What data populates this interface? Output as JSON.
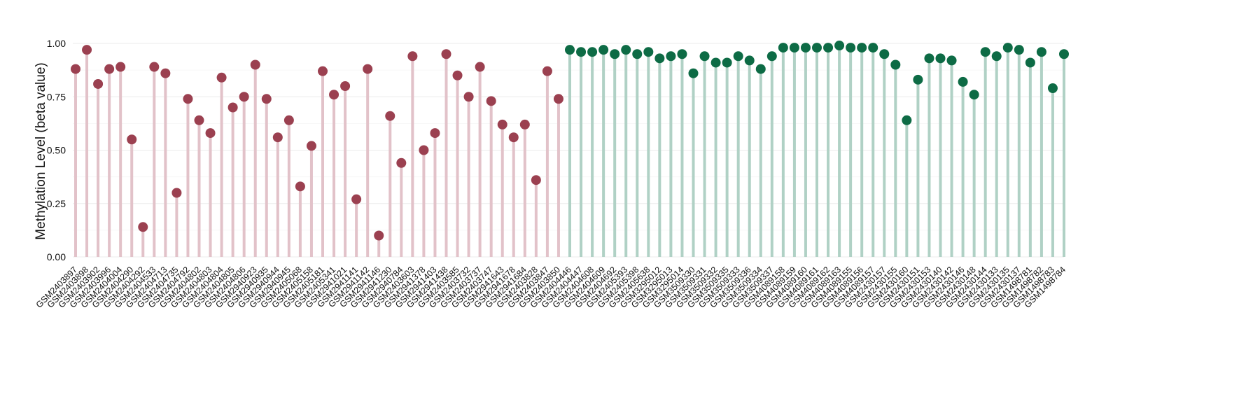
{
  "chart_data": {
    "type": "lollipop",
    "title": "",
    "xlabel": "",
    "ylabel": "Methylation Level (beta value)",
    "ylim": [
      0,
      1
    ],
    "yticks": [
      "0.00",
      "0.25",
      "0.50",
      "0.75",
      "1.00"
    ],
    "grid": true,
    "legend": "none",
    "series": [
      {
        "color": "#9b4050",
        "stem_color": "#e2c2c9",
        "categories": [
          "GSM2403897",
          "GSM2403898",
          "GSM2403902",
          "GSM2403996",
          "GSM2404004",
          "GSM2404290",
          "GSM2404292",
          "GSM2404533",
          "GSM2404713",
          "GSM2404735",
          "GSM2404792",
          "GSM2404802",
          "GSM2404803",
          "GSM2404804",
          "GSM2404805",
          "GSM2404806",
          "GSM2940923",
          "GSM2940935",
          "GSM2940944",
          "GSM2940945",
          "GSM2405068",
          "GSM2405158",
          "GSM2405181",
          "GSM2405341",
          "GSM2941021",
          "GSM2941141",
          "GSM2941142",
          "GSM2941146",
          "GSM2941230",
          "GSM2940784",
          "GSM2403603",
          "GSM2941378",
          "GSM2941403",
          "GSM2941438",
          "GSM2403585",
          "GSM2403732",
          "GSM2403737",
          "GSM2403747",
          "GSM2941643",
          "GSM2941678",
          "GSM2941684",
          "GSM2403828",
          "GSM2403847",
          "GSM2403850"
        ],
        "values": [
          0.88,
          0.97,
          0.81,
          0.88,
          0.89,
          0.55,
          0.14,
          0.89,
          0.86,
          0.3,
          0.74,
          0.64,
          0.58,
          0.84,
          0.7,
          0.75,
          0.9,
          0.74,
          0.56,
          0.64,
          0.33,
          0.52,
          0.87,
          0.76,
          0.8,
          0.27,
          0.88,
          0.1,
          0.66,
          0.44,
          0.94,
          0.5,
          0.58,
          0.95,
          0.85,
          0.75,
          0.89,
          0.73,
          0.62,
          0.56,
          0.62,
          0.36,
          0.87,
          0.74
        ]
      },
      {
        "color": "#0d6b45",
        "stem_color": "#b0d1c5",
        "categories": [
          "GSM2404446",
          "GSM2404447",
          "GSM2404608",
          "GSM2404609",
          "GSM2404692",
          "GSM2405393",
          "GSM2405398",
          "GSM2405638",
          "GSM3295012",
          "GSM3295013",
          "GSM3295014",
          "GSM3509330",
          "GSM3509331",
          "GSM3509332",
          "GSM3509335",
          "GSM3509333",
          "GSM3509336",
          "GSM3509334",
          "GSM3509337",
          "GSM4089158",
          "GSM4089159",
          "GSM4089160",
          "GSM4089161",
          "GSM4089162",
          "GSM4089163",
          "GSM4089155",
          "GSM4089156",
          "GSM4089157",
          "GSM2430157",
          "GSM2430155",
          "GSM2430160",
          "GSM2430151",
          "GSM2430153",
          "GSM2430140",
          "GSM2430142",
          "GSM2430146",
          "GSM2430148",
          "GSM2430144",
          "GSM2430133",
          "GSM2430135",
          "GSM2430137",
          "GSM1498781",
          "GSM1498782",
          "GSM1498783",
          "GSM1498784"
        ],
        "values": [
          0.97,
          0.96,
          0.96,
          0.97,
          0.95,
          0.97,
          0.95,
          0.96,
          0.93,
          0.94,
          0.95,
          0.86,
          0.94,
          0.91,
          0.91,
          0.94,
          0.92,
          0.88,
          0.94,
          0.98,
          0.98,
          0.98,
          0.98,
          0.98,
          0.99,
          0.98,
          0.98,
          0.98,
          0.95,
          0.9,
          0.64,
          0.83,
          0.93,
          0.93,
          0.92,
          0.82,
          0.76,
          0.96,
          0.94,
          0.98,
          0.97,
          0.91,
          0.96,
          0.79,
          0.95
        ]
      }
    ]
  }
}
